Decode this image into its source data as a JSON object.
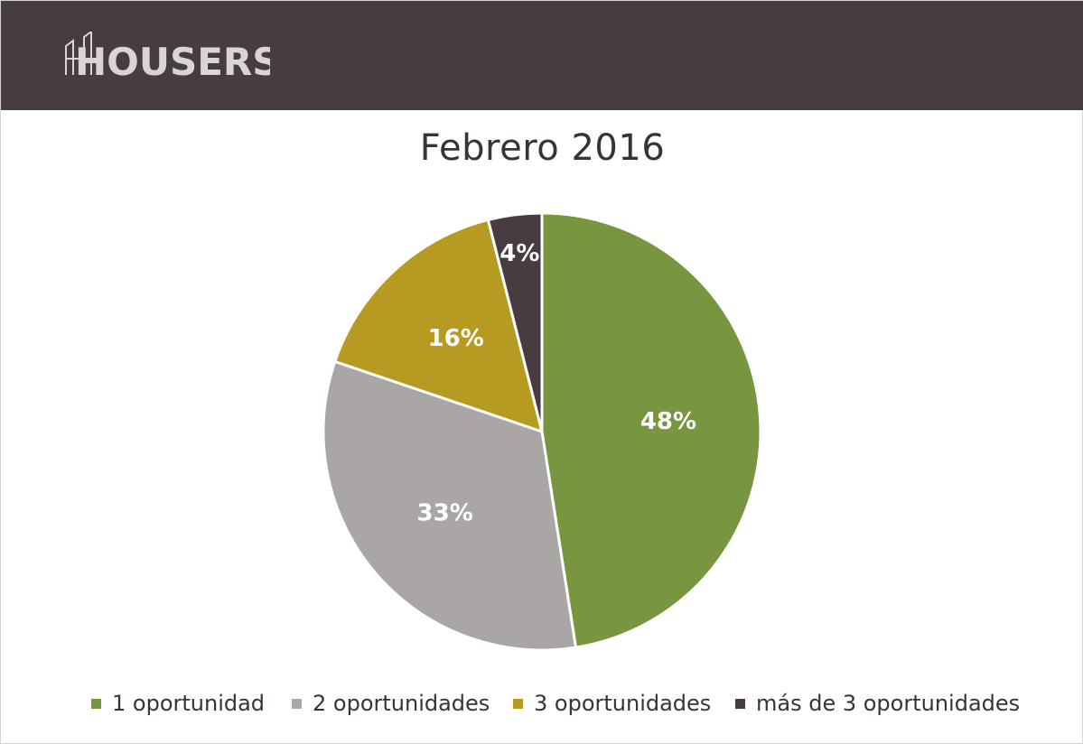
{
  "header": {
    "logo_text": "HOUSERS",
    "background": "#473c40"
  },
  "chart_data": {
    "type": "pie",
    "title": "Febrero 2016",
    "categories": [
      "1 oportunidad",
      "2 oportunidades",
      "3 oportunidades",
      "más de 3 oportunidades"
    ],
    "values": [
      48,
      33,
      16,
      4
    ],
    "labels": [
      "48%",
      "33%",
      "16%",
      "4%"
    ],
    "colors": [
      "#789640",
      "#aba6a6",
      "#b79a22",
      "#473c40"
    ],
    "start_angle_deg": 0,
    "direction": "clockwise",
    "legend": "bottom"
  }
}
